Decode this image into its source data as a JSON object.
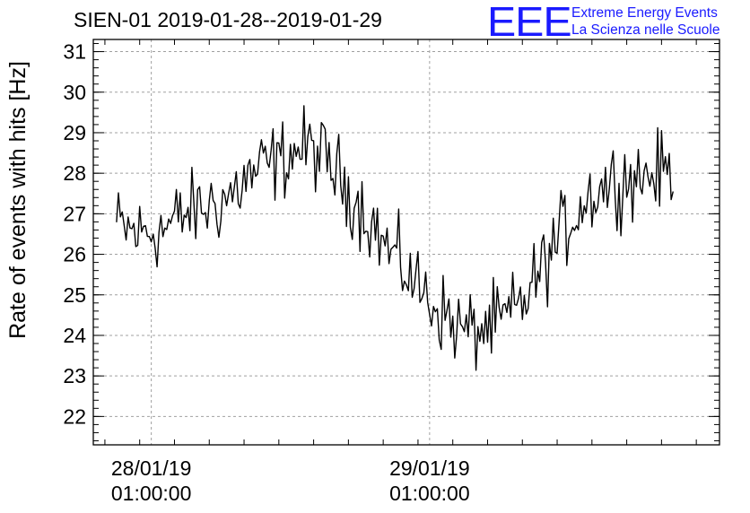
{
  "chart_data": {
    "type": "line",
    "title": "SIEN-01 2019-01-28--2019-01-29",
    "xlabel": "",
    "ylabel": "Rate of events with hits [Hz]",
    "ylim": [
      21.3,
      31.3
    ],
    "xlim": [
      "2019-01-27 20:00",
      "2019-01-30 02:00"
    ],
    "yticks": [
      22,
      23,
      24,
      25,
      26,
      27,
      28,
      29,
      30,
      31
    ],
    "xticks": [
      {
        "x": "2019-01-28 01:00",
        "label_line1": "28/01/19",
        "label_line2": "01:00:00"
      },
      {
        "x": "2019-01-29 01:00",
        "label_line1": "29/01/19",
        "label_line2": "01:00:00"
      }
    ],
    "grid": true,
    "series": [
      {
        "x": [
          "2019-01-27 22:00",
          "2019-01-27 23:00",
          "2019-01-28 00:00",
          "2019-01-28 01:00",
          "2019-01-28 02:00",
          "2019-01-28 03:00",
          "2019-01-28 04:00",
          "2019-01-28 05:00",
          "2019-01-28 06:00",
          "2019-01-28 07:00",
          "2019-01-28 08:00",
          "2019-01-28 09:00",
          "2019-01-28 10:00",
          "2019-01-28 11:00",
          "2019-01-28 12:00",
          "2019-01-28 13:00",
          "2019-01-28 14:00",
          "2019-01-28 15:00",
          "2019-01-28 16:00",
          "2019-01-28 17:00",
          "2019-01-28 18:00",
          "2019-01-28 19:00",
          "2019-01-28 20:00",
          "2019-01-28 21:00",
          "2019-01-28 22:00",
          "2019-01-28 23:00",
          "2019-01-29 00:00",
          "2019-01-29 01:00",
          "2019-01-29 02:00",
          "2019-01-29 03:00",
          "2019-01-29 04:00",
          "2019-01-29 05:00",
          "2019-01-29 06:00",
          "2019-01-29 07:00",
          "2019-01-29 08:00",
          "2019-01-29 09:00",
          "2019-01-29 10:00",
          "2019-01-29 11:00",
          "2019-01-29 12:00",
          "2019-01-29 13:00",
          "2019-01-29 14:00",
          "2019-01-29 15:00",
          "2019-01-29 16:00",
          "2019-01-29 17:00",
          "2019-01-29 18:00",
          "2019-01-29 19:00",
          "2019-01-29 20:00",
          "2019-01-29 21:00",
          "2019-01-29 22:00"
        ],
        "values": [
          26.7,
          26.6,
          26.5,
          26.6,
          26.6,
          26.8,
          27.0,
          27.1,
          27.2,
          27.3,
          27.5,
          27.8,
          28.0,
          28.2,
          28.3,
          28.5,
          28.6,
          28.6,
          28.3,
          28.0,
          27.6,
          27.2,
          26.8,
          26.3,
          25.9,
          25.6,
          25.2,
          24.9,
          24.6,
          24.3,
          24.1,
          24.1,
          24.2,
          24.3,
          24.5,
          24.8,
          25.3,
          25.8,
          26.3,
          26.8,
          27.2,
          27.5,
          27.7,
          27.8,
          27.9,
          27.9,
          28.0,
          28.0,
          28.1
        ],
        "noise_amplitude": 0.7
      }
    ]
  },
  "logo": {
    "mark": "EEE",
    "line1": "Extreme Energy Events",
    "line2": "La Scienza nelle Scuole"
  },
  "colors": {
    "series": "#000000",
    "grid": "#a0a0a0",
    "logo": "#1a1aff"
  }
}
